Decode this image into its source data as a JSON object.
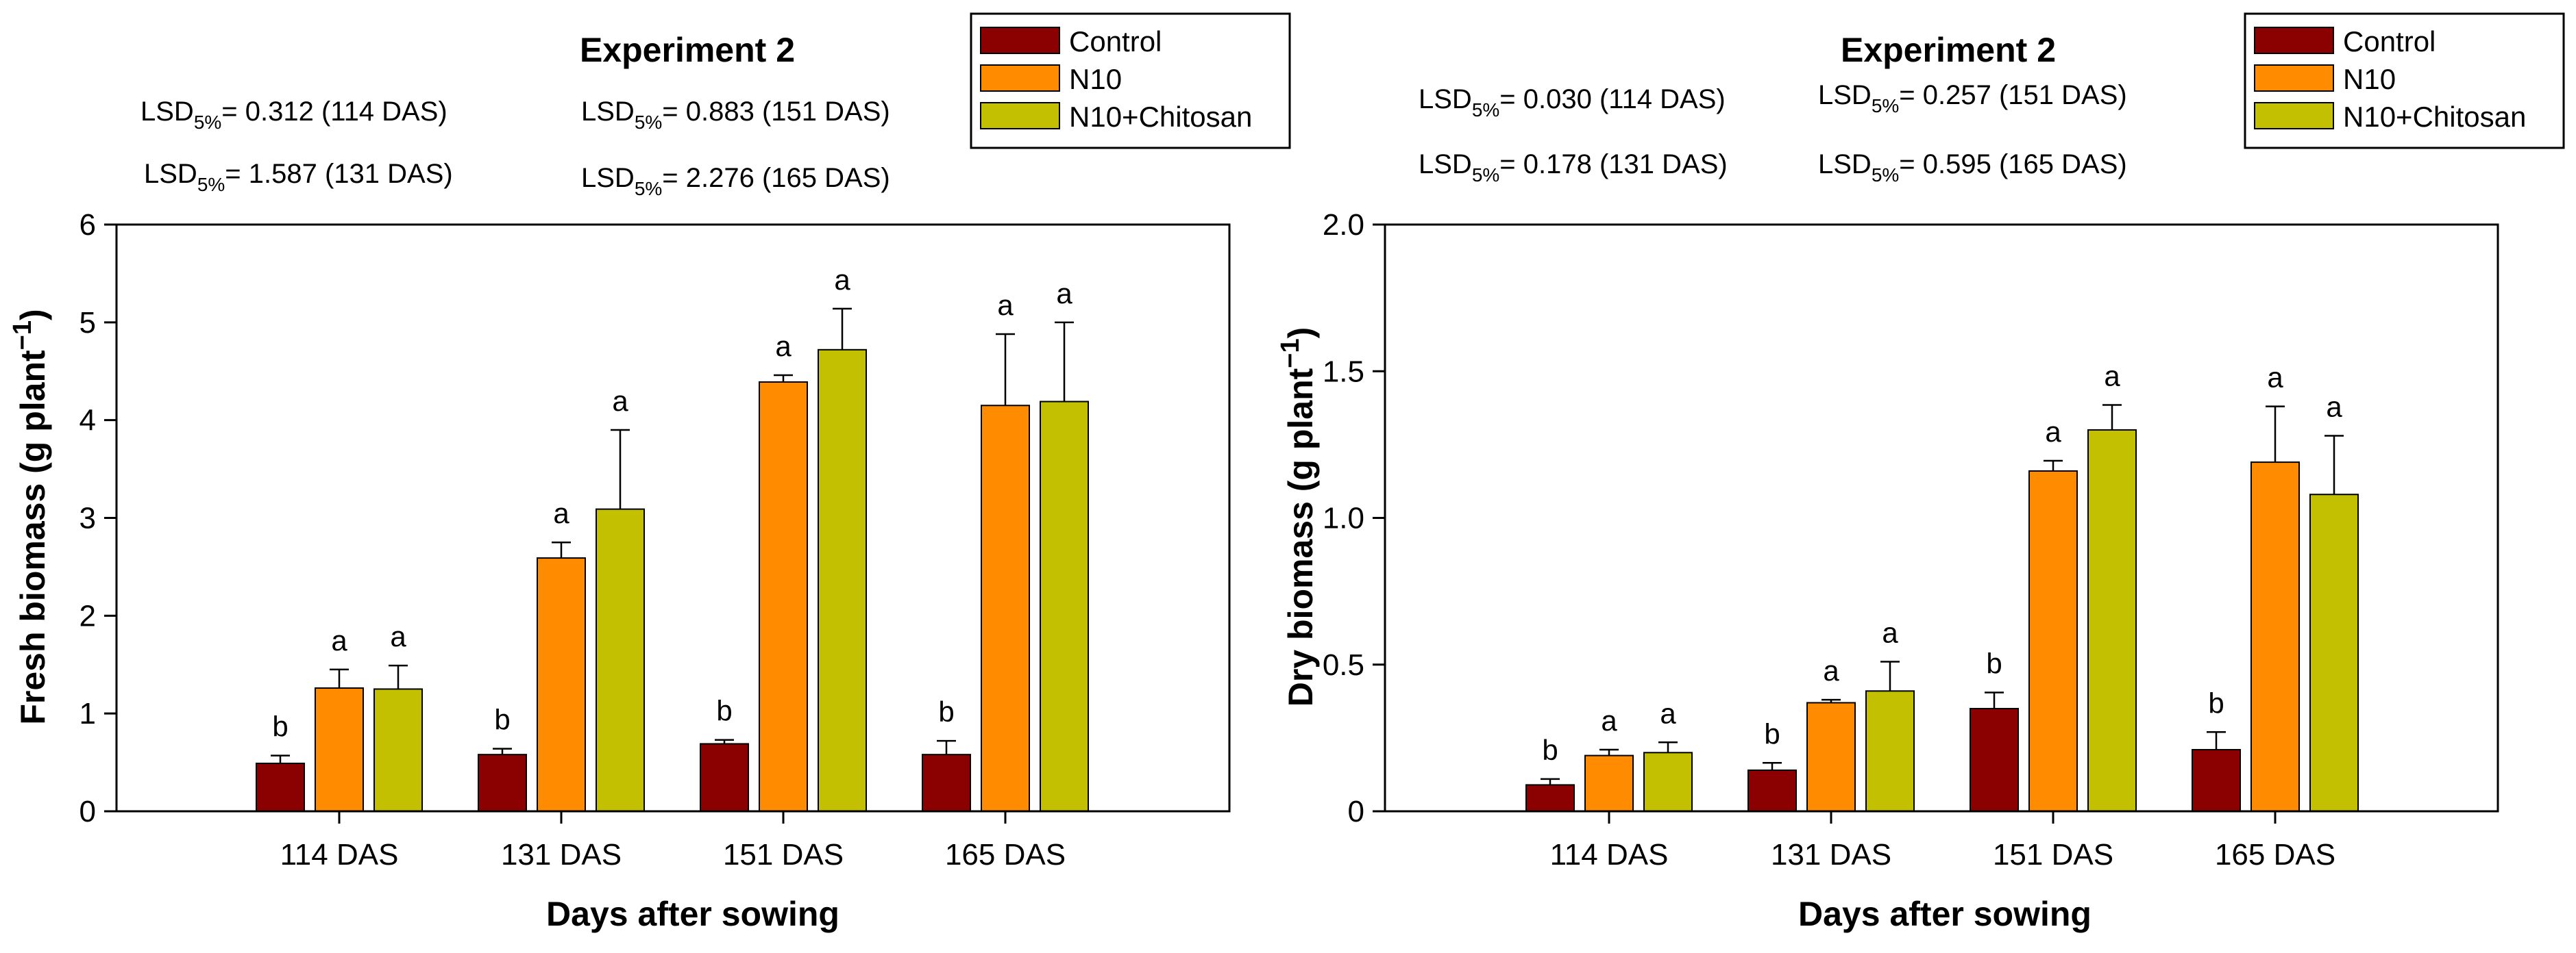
{
  "colors": {
    "Control": "#8b0000",
    "N10": "#ff8c00",
    "N10+Chitosan": "#c2c000",
    "axis": "#000000"
  },
  "chart_data": [
    {
      "type": "bar",
      "title": "Experiment 2",
      "xlabel": "Days after sowing",
      "ylabel_main": "Fresh biomass (g plant",
      "ylabel_exp": "−1",
      "ylabel_close": ")",
      "categories": [
        "114 DAS",
        "131 DAS",
        "151 DAS",
        "165 DAS"
      ],
      "ylim": [
        0,
        6
      ],
      "yticks": [
        0,
        1,
        2,
        3,
        4,
        5,
        6
      ],
      "ytick_labels": [
        "0",
        "1",
        "2",
        "3",
        "4",
        "5",
        "6"
      ],
      "legend": [
        "Control",
        "N10",
        "N10+Chitosan"
      ],
      "series": [
        {
          "name": "Control",
          "values": [
            0.49,
            0.58,
            0.69,
            0.58
          ],
          "errors": [
            0.08,
            0.06,
            0.04,
            0.14
          ],
          "letters": [
            "b",
            "b",
            "b",
            "b"
          ]
        },
        {
          "name": "N10",
          "values": [
            1.26,
            2.59,
            4.39,
            4.15
          ],
          "errors": [
            0.19,
            0.16,
            0.07,
            0.73
          ],
          "letters": [
            "a",
            "a",
            "a",
            "a"
          ]
        },
        {
          "name": "N10+Chitosan",
          "values": [
            1.25,
            3.09,
            4.72,
            4.19
          ],
          "errors": [
            0.24,
            0.81,
            0.42,
            0.81
          ],
          "letters": [
            "a",
            "a",
            "a",
            "a"
          ]
        }
      ],
      "lsd": [
        {
          "prefix": "LSD",
          "sub": "5%",
          "text": "= 0.312 (114 DAS)"
        },
        {
          "prefix": "LSD",
          "sub": "5%",
          "text": "= 1.587 (131 DAS)"
        },
        {
          "prefix": "LSD",
          "sub": "5%",
          "text": "= 0.883 (151 DAS)"
        },
        {
          "prefix": "LSD",
          "sub": "5%",
          "text": "= 2.276 (165 DAS)"
        }
      ]
    },
    {
      "type": "bar",
      "title": "Experiment 2",
      "xlabel": "Days after sowing",
      "ylabel_main": "Dry biomass (g plant",
      "ylabel_exp": "−1",
      "ylabel_close": ")",
      "categories": [
        "114 DAS",
        "131 DAS",
        "151 DAS",
        "165 DAS"
      ],
      "ylim": [
        0,
        2
      ],
      "yticks": [
        0,
        0.5,
        1,
        1.5,
        2
      ],
      "ytick_labels": [
        "0",
        "0.5",
        "1.0",
        "1.5",
        "2.0"
      ],
      "legend": [
        "Control",
        "N10",
        "N10+Chitosan"
      ],
      "series": [
        {
          "name": "Control",
          "values": [
            0.09,
            0.14,
            0.35,
            0.21
          ],
          "errors": [
            0.02,
            0.025,
            0.055,
            0.06
          ],
          "letters": [
            "b",
            "b",
            "b",
            "b"
          ]
        },
        {
          "name": "N10",
          "values": [
            0.19,
            0.37,
            1.16,
            1.19
          ],
          "errors": [
            0.02,
            0.01,
            0.035,
            0.19
          ],
          "letters": [
            "a",
            "a",
            "a",
            "a"
          ]
        },
        {
          "name": "N10+Chitosan",
          "values": [
            0.2,
            0.41,
            1.3,
            1.08
          ],
          "errors": [
            0.035,
            0.1,
            0.085,
            0.2
          ],
          "letters": [
            "a",
            "a",
            "a",
            "a"
          ]
        }
      ],
      "lsd": [
        {
          "prefix": "LSD",
          "sub": "5%",
          "text": "= 0.030 (114 DAS)"
        },
        {
          "prefix": "LSD",
          "sub": "5%",
          "text": "= 0.178 (131 DAS)"
        },
        {
          "prefix": "LSD",
          "sub": "5%",
          "text": "= 0.257 (151 DAS)"
        },
        {
          "prefix": "LSD",
          "sub": "5%",
          "text": "= 0.595 (165 DAS)"
        }
      ]
    }
  ]
}
